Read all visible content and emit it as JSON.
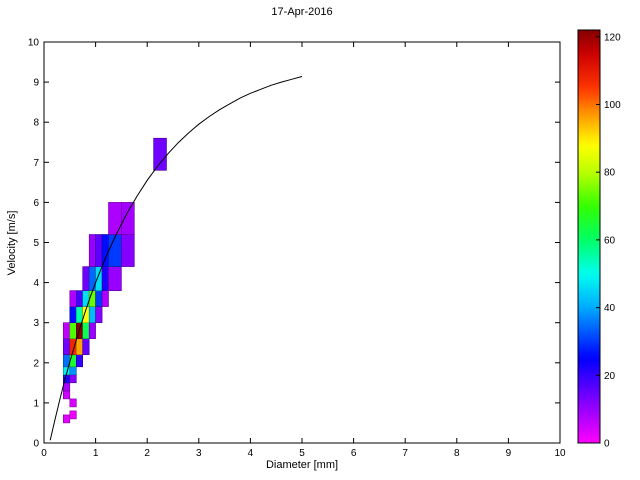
{
  "chart_data": {
    "type": "heatmap",
    "title": "17-Apr-2016",
    "xlabel": "Diameter [mm]",
    "ylabel": "Velocity [m/s]",
    "xlim": [
      0,
      10
    ],
    "ylim": [
      0,
      10
    ],
    "xticks": [
      0,
      1,
      2,
      3,
      4,
      5,
      6,
      7,
      8,
      9,
      10
    ],
    "yticks": [
      0,
      1,
      2,
      3,
      4,
      5,
      6,
      7,
      8,
      9,
      10
    ],
    "grid": false,
    "background_color": "#ffffff",
    "curve_color": "#000000",
    "colorbar_range": [
      0,
      122
    ],
    "colorbar_ticks": [
      0,
      20,
      40,
      60,
      80,
      100,
      120
    ],
    "colormap_stops": [
      [
        0,
        "#ff00ff"
      ],
      [
        15,
        "#6600ff"
      ],
      [
        25,
        "#0000ff"
      ],
      [
        40,
        "#00aaff"
      ],
      [
        50,
        "#00ffee"
      ],
      [
        60,
        "#00ff66"
      ],
      [
        70,
        "#33ff00"
      ],
      [
        80,
        "#bbff00"
      ],
      [
        88,
        "#ffff00"
      ],
      [
        97,
        "#ff9900"
      ],
      [
        105,
        "#ff3300"
      ],
      [
        115,
        "#cc0000"
      ],
      [
        125,
        "#660000"
      ]
    ],
    "cells_format": [
      "diameter_lo_mm",
      "diameter_hi_mm",
      "velocity_lo_ms",
      "velocity_hi_ms",
      "count"
    ],
    "cells": [
      [
        0.375,
        0.5,
        0.5,
        0.7,
        3
      ],
      [
        0.5,
        0.625,
        0.6,
        0.8,
        2
      ],
      [
        0.5,
        0.625,
        0.9,
        1.1,
        4
      ],
      [
        0.375,
        0.5,
        1.1,
        1.3,
        5
      ],
      [
        0.375,
        0.5,
        1.3,
        1.5,
        8
      ],
      [
        0.375,
        0.5,
        1.5,
        1.7,
        22
      ],
      [
        0.375,
        0.5,
        1.7,
        1.9,
        48
      ],
      [
        0.375,
        0.5,
        1.9,
        2.2,
        35
      ],
      [
        0.375,
        0.5,
        2.2,
        2.6,
        14
      ],
      [
        0.375,
        0.5,
        2.6,
        3.0,
        6
      ],
      [
        0.5,
        0.625,
        1.5,
        1.7,
        12
      ],
      [
        0.5,
        0.625,
        1.7,
        1.9,
        38
      ],
      [
        0.5,
        0.625,
        1.9,
        2.2,
        65
      ],
      [
        0.5,
        0.625,
        2.2,
        2.6,
        108
      ],
      [
        0.5,
        0.625,
        2.6,
        3.0,
        72
      ],
      [
        0.5,
        0.625,
        3.0,
        3.4,
        26
      ],
      [
        0.5,
        0.625,
        3.4,
        3.8,
        8
      ],
      [
        0.625,
        0.75,
        1.9,
        2.2,
        20
      ],
      [
        0.625,
        0.75,
        2.2,
        2.6,
        96
      ],
      [
        0.625,
        0.75,
        2.6,
        3.0,
        122
      ],
      [
        0.625,
        0.75,
        3.0,
        3.4,
        55
      ],
      [
        0.625,
        0.75,
        3.4,
        3.8,
        18
      ],
      [
        0.75,
        0.875,
        2.2,
        2.6,
        15
      ],
      [
        0.75,
        0.875,
        2.6,
        3.0,
        62
      ],
      [
        0.75,
        0.875,
        3.0,
        3.4,
        88
      ],
      [
        0.75,
        0.875,
        3.4,
        3.8,
        46
      ],
      [
        0.75,
        0.875,
        3.8,
        4.4,
        14
      ],
      [
        0.875,
        1.0,
        2.6,
        3.0,
        10
      ],
      [
        0.875,
        1.0,
        3.0,
        3.4,
        42
      ],
      [
        0.875,
        1.0,
        3.4,
        3.8,
        74
      ],
      [
        0.875,
        1.0,
        3.8,
        4.4,
        34
      ],
      [
        0.875,
        1.0,
        4.4,
        5.2,
        10
      ],
      [
        1.0,
        1.125,
        3.0,
        3.4,
        12
      ],
      [
        1.0,
        1.125,
        3.4,
        3.8,
        30
      ],
      [
        1.0,
        1.125,
        3.8,
        4.4,
        46
      ],
      [
        1.0,
        1.125,
        4.4,
        5.2,
        16
      ],
      [
        1.125,
        1.25,
        3.4,
        3.8,
        8
      ],
      [
        1.125,
        1.25,
        3.8,
        4.4,
        22
      ],
      [
        1.125,
        1.25,
        4.4,
        5.2,
        26
      ],
      [
        1.25,
        1.5,
        3.8,
        4.4,
        10
      ],
      [
        1.25,
        1.5,
        4.4,
        5.2,
        30
      ],
      [
        1.25,
        1.5,
        5.2,
        6.0,
        8
      ],
      [
        1.5,
        1.75,
        4.4,
        5.2,
        12
      ],
      [
        1.5,
        1.75,
        5.2,
        6.0,
        9
      ],
      [
        2.125,
        2.375,
        6.8,
        7.6,
        14
      ]
    ],
    "curve": {
      "name": "terminal-velocity-curve",
      "points": [
        [
          0.12,
          0.07
        ],
        [
          0.2,
          0.51
        ],
        [
          0.3,
          1.05
        ],
        [
          0.4,
          1.55
        ],
        [
          0.5,
          2.02
        ],
        [
          0.6,
          2.46
        ],
        [
          0.7,
          2.88
        ],
        [
          0.8,
          3.28
        ],
        [
          0.9,
          3.65
        ],
        [
          1.0,
          4.0
        ],
        [
          1.2,
          4.64
        ],
        [
          1.4,
          5.2
        ],
        [
          1.6,
          5.71
        ],
        [
          1.8,
          6.15
        ],
        [
          2.0,
          6.55
        ],
        [
          2.2,
          6.9
        ],
        [
          2.4,
          7.21
        ],
        [
          2.6,
          7.49
        ],
        [
          2.8,
          7.73
        ],
        [
          3.0,
          7.95
        ],
        [
          3.2,
          8.14
        ],
        [
          3.4,
          8.31
        ],
        [
          3.6,
          8.46
        ],
        [
          3.8,
          8.6
        ],
        [
          4.0,
          8.72
        ],
        [
          4.2,
          8.82
        ],
        [
          4.4,
          8.92
        ],
        [
          4.6,
          9.0
        ],
        [
          4.8,
          9.07
        ],
        [
          5.0,
          9.14
        ]
      ]
    }
  }
}
